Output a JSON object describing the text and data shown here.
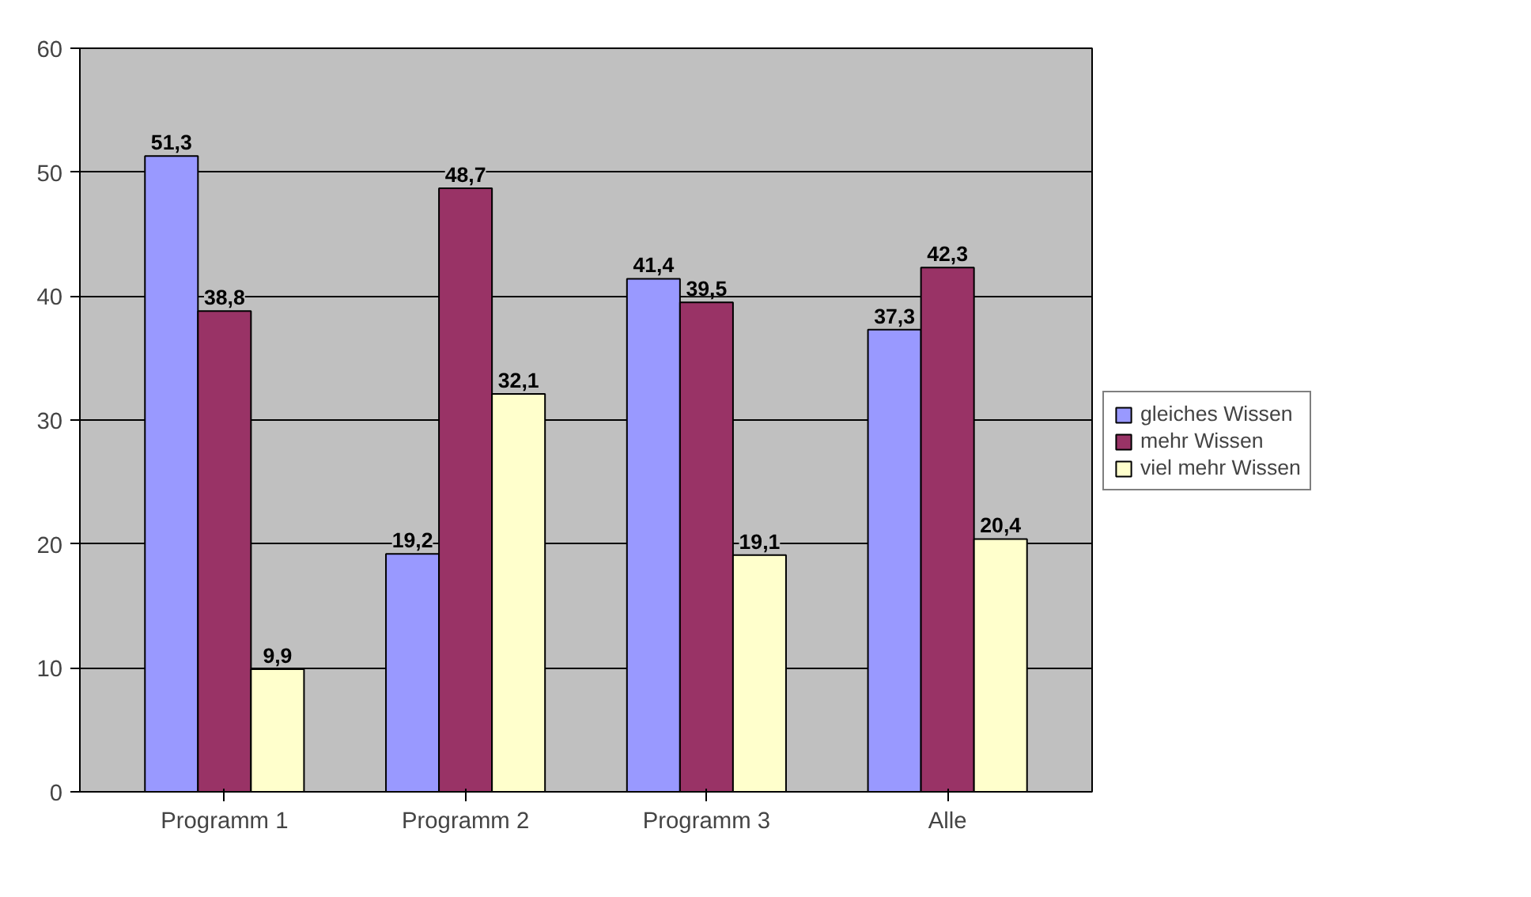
{
  "chart_data": {
    "type": "bar",
    "categories": [
      "Programm 1",
      "Programm 2",
      "Programm 3",
      "Alle"
    ],
    "series": [
      {
        "name": "gleiches Wissen",
        "color": "#9999ff",
        "values": [
          51.3,
          19.2,
          41.4,
          37.3
        ],
        "value_labels": [
          "51,3",
          "19,2",
          "41,4",
          "37,3"
        ]
      },
      {
        "name": "mehr Wissen",
        "color": "#993366",
        "values": [
          38.8,
          48.7,
          39.5,
          42.3
        ],
        "value_labels": [
          "38,8",
          "48,7",
          "39,5",
          "42,3"
        ]
      },
      {
        "name": "viel mehr Wissen",
        "color": "#ffffcc",
        "values": [
          9.9,
          32.1,
          19.1,
          20.4
        ],
        "value_labels": [
          "9,9",
          "32,1",
          "19,1",
          "20,4"
        ]
      }
    ],
    "ylim": [
      0,
      60
    ],
    "yticks": [
      0,
      10,
      20,
      30,
      40,
      50,
      60
    ],
    "grid": "y",
    "legend": "right"
  }
}
